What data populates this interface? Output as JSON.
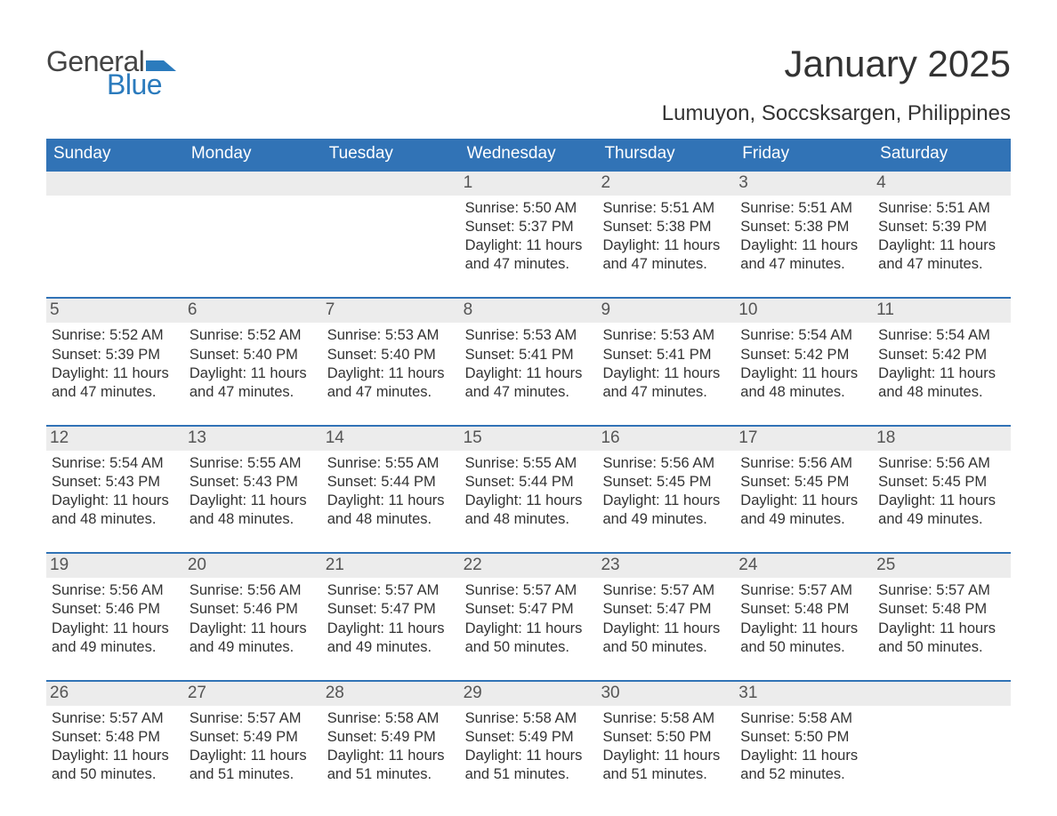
{
  "logo": {
    "line1": "General",
    "line2": "Blue",
    "accent_color": "#2b7bbd"
  },
  "title": "January 2025",
  "location": "Lumuyon, Soccsksargen, Philippines",
  "colors": {
    "header_bg": "#3173b6",
    "header_text": "#ffffff",
    "daynum_bg": "#ececec",
    "daynum_border": "#3173b6",
    "body_text": "#333333",
    "page_bg": "#ffffff"
  },
  "fonts": {
    "title_size_pt": 32,
    "location_size_pt": 18,
    "weekday_size_pt": 14,
    "daynum_size_pt": 14,
    "body_size_pt": 12
  },
  "weekdays": [
    "Sunday",
    "Monday",
    "Tuesday",
    "Wednesday",
    "Thursday",
    "Friday",
    "Saturday"
  ],
  "weeks": [
    [
      null,
      null,
      null,
      {
        "n": "1",
        "sunrise": "5:50 AM",
        "sunset": "5:37 PM",
        "daylight": "11 hours and 47 minutes."
      },
      {
        "n": "2",
        "sunrise": "5:51 AM",
        "sunset": "5:38 PM",
        "daylight": "11 hours and 47 minutes."
      },
      {
        "n": "3",
        "sunrise": "5:51 AM",
        "sunset": "5:38 PM",
        "daylight": "11 hours and 47 minutes."
      },
      {
        "n": "4",
        "sunrise": "5:51 AM",
        "sunset": "5:39 PM",
        "daylight": "11 hours and 47 minutes."
      }
    ],
    [
      {
        "n": "5",
        "sunrise": "5:52 AM",
        "sunset": "5:39 PM",
        "daylight": "11 hours and 47 minutes."
      },
      {
        "n": "6",
        "sunrise": "5:52 AM",
        "sunset": "5:40 PM",
        "daylight": "11 hours and 47 minutes."
      },
      {
        "n": "7",
        "sunrise": "5:53 AM",
        "sunset": "5:40 PM",
        "daylight": "11 hours and 47 minutes."
      },
      {
        "n": "8",
        "sunrise": "5:53 AM",
        "sunset": "5:41 PM",
        "daylight": "11 hours and 47 minutes."
      },
      {
        "n": "9",
        "sunrise": "5:53 AM",
        "sunset": "5:41 PM",
        "daylight": "11 hours and 47 minutes."
      },
      {
        "n": "10",
        "sunrise": "5:54 AM",
        "sunset": "5:42 PM",
        "daylight": "11 hours and 48 minutes."
      },
      {
        "n": "11",
        "sunrise": "5:54 AM",
        "sunset": "5:42 PM",
        "daylight": "11 hours and 48 minutes."
      }
    ],
    [
      {
        "n": "12",
        "sunrise": "5:54 AM",
        "sunset": "5:43 PM",
        "daylight": "11 hours and 48 minutes."
      },
      {
        "n": "13",
        "sunrise": "5:55 AM",
        "sunset": "5:43 PM",
        "daylight": "11 hours and 48 minutes."
      },
      {
        "n": "14",
        "sunrise": "5:55 AM",
        "sunset": "5:44 PM",
        "daylight": "11 hours and 48 minutes."
      },
      {
        "n": "15",
        "sunrise": "5:55 AM",
        "sunset": "5:44 PM",
        "daylight": "11 hours and 48 minutes."
      },
      {
        "n": "16",
        "sunrise": "5:56 AM",
        "sunset": "5:45 PM",
        "daylight": "11 hours and 49 minutes."
      },
      {
        "n": "17",
        "sunrise": "5:56 AM",
        "sunset": "5:45 PM",
        "daylight": "11 hours and 49 minutes."
      },
      {
        "n": "18",
        "sunrise": "5:56 AM",
        "sunset": "5:45 PM",
        "daylight": "11 hours and 49 minutes."
      }
    ],
    [
      {
        "n": "19",
        "sunrise": "5:56 AM",
        "sunset": "5:46 PM",
        "daylight": "11 hours and 49 minutes."
      },
      {
        "n": "20",
        "sunrise": "5:56 AM",
        "sunset": "5:46 PM",
        "daylight": "11 hours and 49 minutes."
      },
      {
        "n": "21",
        "sunrise": "5:57 AM",
        "sunset": "5:47 PM",
        "daylight": "11 hours and 49 minutes."
      },
      {
        "n": "22",
        "sunrise": "5:57 AM",
        "sunset": "5:47 PM",
        "daylight": "11 hours and 50 minutes."
      },
      {
        "n": "23",
        "sunrise": "5:57 AM",
        "sunset": "5:47 PM",
        "daylight": "11 hours and 50 minutes."
      },
      {
        "n": "24",
        "sunrise": "5:57 AM",
        "sunset": "5:48 PM",
        "daylight": "11 hours and 50 minutes."
      },
      {
        "n": "25",
        "sunrise": "5:57 AM",
        "sunset": "5:48 PM",
        "daylight": "11 hours and 50 minutes."
      }
    ],
    [
      {
        "n": "26",
        "sunrise": "5:57 AM",
        "sunset": "5:48 PM",
        "daylight": "11 hours and 50 minutes."
      },
      {
        "n": "27",
        "sunrise": "5:57 AM",
        "sunset": "5:49 PM",
        "daylight": "11 hours and 51 minutes."
      },
      {
        "n": "28",
        "sunrise": "5:58 AM",
        "sunset": "5:49 PM",
        "daylight": "11 hours and 51 minutes."
      },
      {
        "n": "29",
        "sunrise": "5:58 AM",
        "sunset": "5:49 PM",
        "daylight": "11 hours and 51 minutes."
      },
      {
        "n": "30",
        "sunrise": "5:58 AM",
        "sunset": "5:50 PM",
        "daylight": "11 hours and 51 minutes."
      },
      {
        "n": "31",
        "sunrise": "5:58 AM",
        "sunset": "5:50 PM",
        "daylight": "11 hours and 52 minutes."
      },
      null
    ]
  ],
  "labels": {
    "sunrise": "Sunrise:",
    "sunset": "Sunset:",
    "daylight": "Daylight:"
  }
}
